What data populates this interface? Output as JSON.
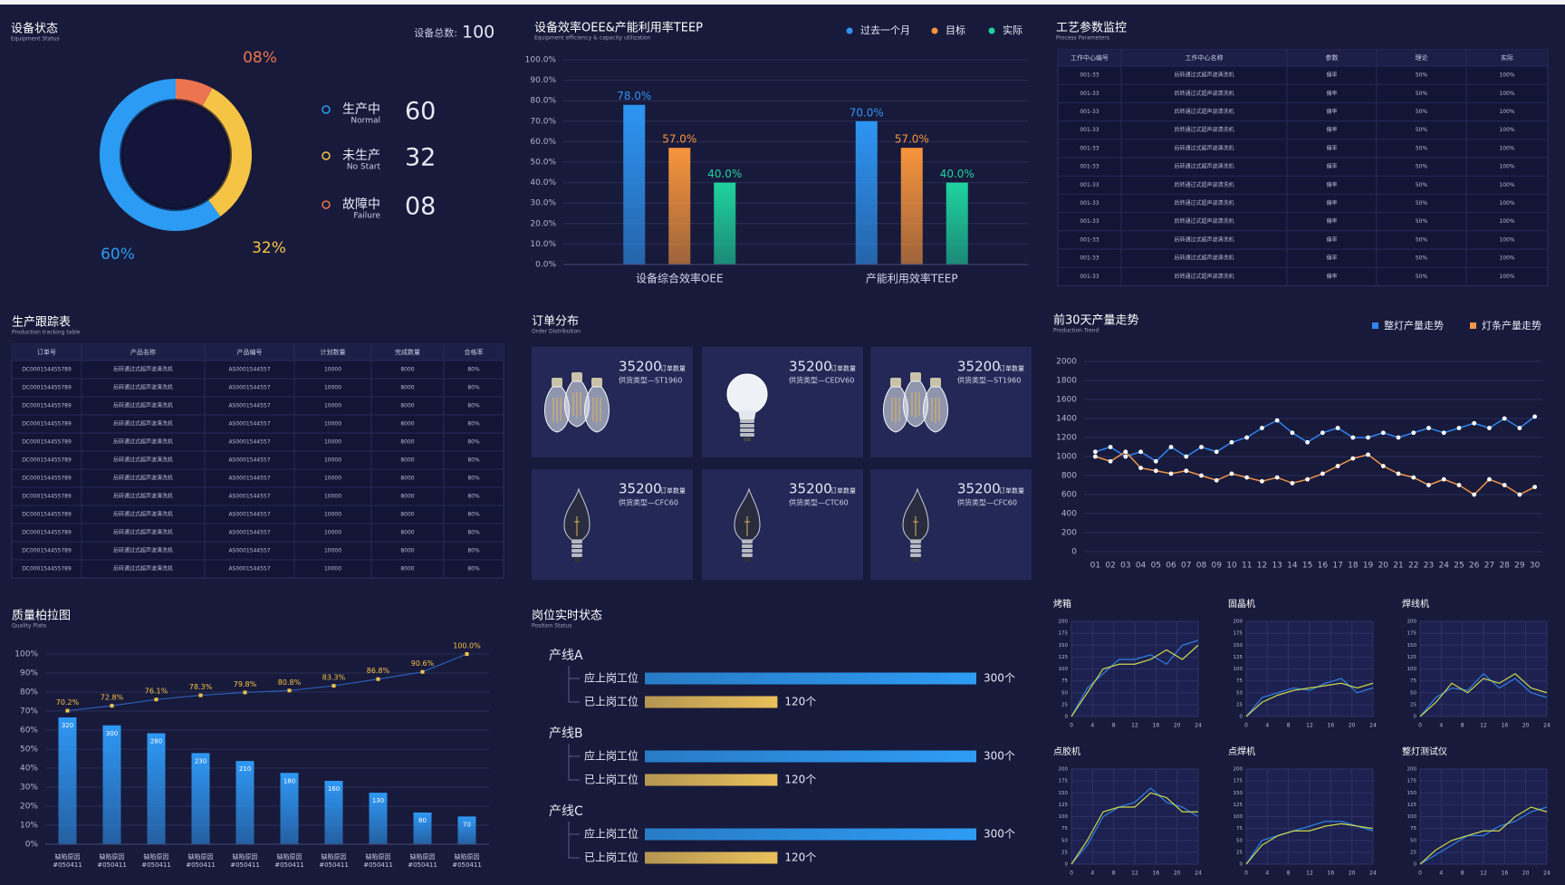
{
  "chart_data": [
    {
      "type": "donut",
      "title": "设备状态",
      "subtitle": "Equipment Status",
      "total_label": "设备总数:",
      "total": 100,
      "categories": [
        "生产中",
        "未生产",
        "故障中"
      ],
      "categories_en": [
        "Normal",
        "No Start",
        "Failure"
      ],
      "values": [
        60,
        32,
        8
      ],
      "value_labels": [
        "60%",
        "32%",
        "08%"
      ],
      "legend_labels": [
        "60",
        "32",
        "08"
      ],
      "colors": [
        "#2b9bf4",
        "#f6c445",
        "#ec7451"
      ]
    },
    {
      "type": "bar",
      "title": "设备效率OEE&产能利用率TEEP",
      "subtitle": "Equipment efficiency & capacity utilization",
      "categories": [
        "设备综合效率OEE",
        "产能利用效率TEEP"
      ],
      "series": [
        {
          "name": "过去一个月",
          "color": "#2e95f3",
          "values": [
            78,
            70
          ],
          "value_labels": [
            "78.0%",
            "70.0%"
          ]
        },
        {
          "name": "目标",
          "color": "#f7953c",
          "values": [
            57,
            57
          ],
          "value_labels": [
            "57.0%",
            "57.0%"
          ]
        },
        {
          "name": "实际",
          "color": "#1fd39e",
          "values": [
            40,
            40
          ],
          "value_labels": [
            "40.0%",
            "40.0%"
          ]
        }
      ],
      "ylim": [
        0,
        100
      ],
      "yticks": [
        {
          "value": 0,
          "label": "0.0%"
        },
        {
          "value": 10,
          "label": "10.0%"
        },
        {
          "value": 20,
          "label": "20.0%"
        },
        {
          "value": 30,
          "label": "30.0%"
        },
        {
          "value": 40,
          "label": "40.0%"
        },
        {
          "value": 50,
          "label": "50.0%"
        },
        {
          "value": 60,
          "label": "60.0%"
        },
        {
          "value": 70,
          "label": "70.0%"
        },
        {
          "value": 80,
          "label": "80.0%"
        },
        {
          "value": 90,
          "label": "90.0%"
        },
        {
          "value": 100,
          "label": "100.0%"
        }
      ],
      "grid": true
    },
    {
      "type": "line",
      "title": "前30天产量走势",
      "subtitle": "Production Trend",
      "categories": [
        "01",
        "02",
        "03",
        "04",
        "05",
        "06",
        "07",
        "08",
        "09",
        "10",
        "11",
        "12",
        "13",
        "14",
        "15",
        "16",
        "17",
        "18",
        "19",
        "20",
        "21",
        "22",
        "23",
        "24",
        "25",
        "26",
        "27",
        "28",
        "29",
        "30"
      ],
      "series": [
        {
          "name": "整灯产量走势",
          "color": "#2f86f0",
          "values": [
            1050,
            1100,
            1000,
            1050,
            950,
            1100,
            1000,
            1100,
            1050,
            1150,
            1200,
            1300,
            1380,
            1250,
            1150,
            1250,
            1300,
            1200,
            1200,
            1250,
            1200,
            1250,
            1300,
            1250,
            1300,
            1350,
            1300,
            1400,
            1300,
            1420
          ]
        },
        {
          "name": "灯条产量走势",
          "color": "#f0954a",
          "values": [
            1000,
            950,
            1050,
            880,
            850,
            820,
            850,
            800,
            750,
            820,
            780,
            740,
            780,
            720,
            760,
            820,
            900,
            980,
            1020,
            900,
            820,
            780,
            700,
            760,
            700,
            600,
            760,
            700,
            600,
            680
          ]
        }
      ],
      "ylim": [
        0,
        2000
      ],
      "yticks": [
        0,
        200,
        400,
        600,
        800,
        1000,
        1200,
        1400,
        1600,
        1800,
        2000
      ],
      "grid": true
    },
    {
      "type": "pareto",
      "title": "质量柏拉图",
      "subtitle": "Quality Plato",
      "categories": [
        "缺陷原因",
        "缺陷原因",
        "缺陷原因",
        "缺陷原因",
        "缺陷原因",
        "缺陷原因",
        "缺陷原因",
        "缺陷原因",
        "缺陷原因",
        "缺陷原因"
      ],
      "category_codes": [
        "#050411",
        "#050411",
        "#050411",
        "#050411",
        "#050411",
        "#050411",
        "#050411",
        "#050411",
        "#050411",
        "#050411"
      ],
      "series": [
        {
          "type": "bar",
          "color": "#2f98f5",
          "axis": "y2",
          "values": [
            320,
            300,
            280,
            230,
            210,
            180,
            160,
            130,
            80,
            70
          ]
        },
        {
          "type": "line",
          "color": "#f6c445",
          "line_color": "#2b5fb8",
          "values": [
            70.2,
            72.8,
            76.1,
            78.3,
            79.8,
            80.8,
            83.3,
            86.8,
            90.6,
            100.0
          ],
          "value_labels": [
            "70.2%",
            "72.8%",
            "76.1%",
            "78.3%",
            "79.8%",
            "80.8%",
            "83.3%",
            "86.8%",
            "90.6%",
            "100.0%"
          ]
        }
      ],
      "ylim": [
        0,
        100
      ],
      "yticks": [
        {
          "value": 0,
          "label": "0%"
        },
        {
          "value": 10,
          "label": "10%"
        },
        {
          "value": 20,
          "label": "20%"
        },
        {
          "value": 30,
          "label": "30%"
        },
        {
          "value": 40,
          "label": "40%"
        },
        {
          "value": 50,
          "label": "50%"
        },
        {
          "value": 60,
          "label": "60%"
        },
        {
          "value": 70,
          "label": "70%"
        },
        {
          "value": 80,
          "label": "80%"
        },
        {
          "value": 90,
          "label": "90%"
        },
        {
          "value": 100,
          "label": "100%"
        }
      ],
      "y2lim": [
        0,
        480
      ],
      "grid": true
    },
    {
      "type": "hbar",
      "title": "岗位实时状态",
      "subtitle": "Position Status",
      "groups": [
        "产线A",
        "产线B",
        "产线C"
      ],
      "series": [
        {
          "name": "应上岗工位",
          "color": "#2e9cf4",
          "values": [
            300,
            300,
            300
          ],
          "value_labels": [
            "300个",
            "300个",
            "300个"
          ]
        },
        {
          "name": "已上岗工位",
          "color": "#e9c05a",
          "values": [
            120,
            120,
            120
          ],
          "value_labels": [
            "120个",
            "120个",
            "120个"
          ]
        }
      ],
      "xlim": [
        0,
        300
      ]
    },
    {
      "type": "line",
      "title": "烤箱",
      "x": [
        0,
        3,
        6,
        9,
        12,
        15,
        18,
        21,
        24
      ],
      "xlim": [
        0,
        24
      ],
      "xticks": [
        0,
        4,
        8,
        12,
        16,
        20,
        24
      ],
      "ylim": [
        0,
        200
      ],
      "yticks": [
        0,
        25,
        50,
        75,
        100,
        125,
        150,
        175,
        200
      ],
      "grid": true,
      "series": [
        {
          "color": "#2f7fe0",
          "values": [
            0,
            60,
            90,
            120,
            120,
            130,
            110,
            150,
            160
          ]
        },
        {
          "color": "#c9d94a",
          "values": [
            0,
            50,
            100,
            110,
            110,
            120,
            140,
            120,
            150
          ]
        }
      ]
    },
    {
      "type": "line",
      "title": "固晶机",
      "x": [
        0,
        3,
        6,
        9,
        12,
        15,
        18,
        21,
        24
      ],
      "xlim": [
        0,
        24
      ],
      "xticks": [
        0,
        4,
        8,
        12,
        16,
        20,
        24
      ],
      "ylim": [
        0,
        200
      ],
      "yticks": [
        0,
        25,
        50,
        75,
        100,
        125,
        150,
        175,
        200
      ],
      "grid": true,
      "series": [
        {
          "color": "#2f7fe0",
          "values": [
            0,
            40,
            50,
            60,
            55,
            70,
            80,
            50,
            60
          ]
        },
        {
          "color": "#c9d94a",
          "values": [
            0,
            30,
            45,
            55,
            60,
            65,
            70,
            60,
            70
          ]
        }
      ]
    },
    {
      "type": "line",
      "title": "焊线机",
      "x": [
        0,
        3,
        6,
        9,
        12,
        15,
        18,
        21,
        24
      ],
      "xlim": [
        0,
        24
      ],
      "xticks": [
        0,
        4,
        8,
        12,
        16,
        20,
        24
      ],
      "ylim": [
        0,
        200
      ],
      "yticks": [
        0,
        25,
        50,
        75,
        100,
        125,
        150,
        175,
        200
      ],
      "grid": true,
      "series": [
        {
          "color": "#2f7fe0",
          "values": [
            0,
            40,
            60,
            55,
            90,
            60,
            80,
            50,
            40
          ]
        },
        {
          "color": "#c9d94a",
          "values": [
            0,
            30,
            70,
            50,
            80,
            70,
            90,
            60,
            50
          ]
        }
      ]
    },
    {
      "type": "line",
      "title": "点胶机",
      "x": [
        0,
        3,
        6,
        9,
        12,
        15,
        18,
        21,
        24
      ],
      "xlim": [
        0,
        24
      ],
      "xticks": [
        0,
        4,
        8,
        12,
        16,
        20,
        24
      ],
      "ylim": [
        0,
        200
      ],
      "yticks": [
        0,
        25,
        50,
        75,
        100,
        125,
        150,
        175,
        200
      ],
      "grid": true,
      "series": [
        {
          "color": "#2f7fe0",
          "values": [
            0,
            40,
            100,
            120,
            130,
            160,
            130,
            120,
            100
          ]
        },
        {
          "color": "#c9d94a",
          "values": [
            0,
            50,
            110,
            120,
            120,
            150,
            140,
            110,
            110
          ]
        }
      ]
    },
    {
      "type": "line",
      "title": "点焊机",
      "x": [
        0,
        3,
        6,
        9,
        12,
        15,
        18,
        21,
        24
      ],
      "xlim": [
        0,
        24
      ],
      "xticks": [
        0,
        4,
        8,
        12,
        16,
        20,
        24
      ],
      "ylim": [
        0,
        200
      ],
      "yticks": [
        0,
        25,
        50,
        75,
        100,
        125,
        150,
        175,
        200
      ],
      "grid": true,
      "series": [
        {
          "color": "#2f7fe0",
          "values": [
            0,
            50,
            60,
            70,
            80,
            90,
            90,
            80,
            70
          ]
        },
        {
          "color": "#c9d94a",
          "values": [
            0,
            40,
            60,
            70,
            70,
            80,
            85,
            80,
            75
          ]
        }
      ]
    },
    {
      "type": "line",
      "title": "整灯测试仪",
      "x": [
        0,
        3,
        6,
        9,
        12,
        15,
        18,
        21,
        24
      ],
      "xlim": [
        0,
        24
      ],
      "xticks": [
        0,
        4,
        8,
        12,
        16,
        20,
        24
      ],
      "ylim": [
        0,
        200
      ],
      "yticks": [
        0,
        25,
        50,
        75,
        100,
        125,
        150,
        175,
        200
      ],
      "grid": true,
      "series": [
        {
          "color": "#2f7fe0",
          "values": [
            0,
            20,
            40,
            60,
            60,
            80,
            90,
            110,
            120
          ]
        },
        {
          "color": "#c9d94a",
          "values": [
            0,
            30,
            50,
            60,
            70,
            70,
            100,
            120,
            110
          ]
        }
      ]
    }
  ],
  "tables": [
    {
      "title": "工艺参数监控",
      "subtitle": "Process Parameters",
      "columns": [
        "工作中心编号",
        "工作中心名称",
        "参数",
        "理论",
        "实际"
      ],
      "rows": [
        [
          "001-33",
          "后转通过式超声波清洗机",
          "偏率",
          "50%",
          "100%"
        ],
        [
          "001-33",
          "后转通过式超声波清洗机",
          "偏率",
          "50%",
          "100%"
        ],
        [
          "001-33",
          "后转通过式超声波清洗机",
          "偏率",
          "50%",
          "100%"
        ],
        [
          "001-33",
          "后转通过式超声波清洗机",
          "偏率",
          "50%",
          "100%"
        ],
        [
          "001-33",
          "后转通过式超声波清洗机",
          "偏率",
          "50%",
          "100%"
        ],
        [
          "001-33",
          "后转通过式超声波清洗机",
          "偏率",
          "50%",
          "100%"
        ],
        [
          "001-33",
          "后转通过式超声波清洗机",
          "偏率",
          "50%",
          "100%"
        ],
        [
          "001-33",
          "后转通过式超声波清洗机",
          "偏率",
          "50%",
          "100%"
        ],
        [
          "001-33",
          "后转通过式超声波清洗机",
          "偏率",
          "50%",
          "100%"
        ],
        [
          "001-33",
          "后转通过式超声波清洗机",
          "偏率",
          "50%",
          "100%"
        ],
        [
          "001-33",
          "后转通过式超声波清洗机",
          "偏率",
          "50%",
          "100%"
        ],
        [
          "001-33",
          "后转通过式超声波清洗机",
          "偏率",
          "50%",
          "100%"
        ]
      ]
    },
    {
      "title": "生产跟踪表",
      "subtitle": "Production tracking table",
      "columns": [
        "订单号",
        "产品名称",
        "产品编号",
        "计划数量",
        "完成数量",
        "合格率"
      ],
      "rows": [
        [
          "DC000154455789",
          "后转通过式超声波清洗机",
          "AS0001544557",
          "10000",
          "8000",
          "80%"
        ],
        [
          "DC000154455789",
          "后转通过式超声波清洗机",
          "AS0001544557",
          "10000",
          "8000",
          "80%"
        ],
        [
          "DC000154455789",
          "后转通过式超声波清洗机",
          "AS0001544557",
          "10000",
          "8000",
          "80%"
        ],
        [
          "DC000154455789",
          "后转通过式超声波清洗机",
          "AS0001544557",
          "10000",
          "8000",
          "80%"
        ],
        [
          "DC000154455789",
          "后转通过式超声波清洗机",
          "AS0001544557",
          "10000",
          "8000",
          "80%"
        ],
        [
          "DC000154455789",
          "后转通过式超声波清洗机",
          "AS0001544557",
          "10000",
          "8000",
          "80%"
        ],
        [
          "DC000154455789",
          "后转通过式超声波清洗机",
          "AS0001544557",
          "10000",
          "8000",
          "80%"
        ],
        [
          "DC000154455789",
          "后转通过式超声波清洗机",
          "AS0001544557",
          "10000",
          "8000",
          "80%"
        ],
        [
          "DC000154455789",
          "后转通过式超声波清洗机",
          "AS0001544557",
          "10000",
          "8000",
          "80%"
        ],
        [
          "DC000154455789",
          "后转通过式超声波清洗机",
          "AS0001544557",
          "10000",
          "8000",
          "80%"
        ],
        [
          "DC000154455789",
          "后转通过式超声波清洗机",
          "AS0001544557",
          "10000",
          "8000",
          "80%"
        ],
        [
          "DC000154455789",
          "后转通过式超声波清洗机",
          "AS0001544557",
          "10000",
          "8000",
          "80%"
        ]
      ]
    }
  ],
  "orders": {
    "title": "订单分布",
    "subtitle": "Order Distribution",
    "items": [
      {
        "count": "35200",
        "count_label": "订单数量",
        "type": "供货类型—ST1960"
      },
      {
        "count": "35200",
        "count_label": "订单数量",
        "type": "供货类型—CEDV60"
      },
      {
        "count": "35200",
        "count_label": "订单数量",
        "type": "供货类型—ST1960"
      },
      {
        "count": "35200",
        "count_label": "订单数量",
        "type": "供货类型—CFC60"
      },
      {
        "count": "35200",
        "count_label": "订单数量",
        "type": "供货类型—CTC60"
      },
      {
        "count": "35200",
        "count_label": "订单数量",
        "type": "供货类型—CFC60"
      }
    ]
  }
}
